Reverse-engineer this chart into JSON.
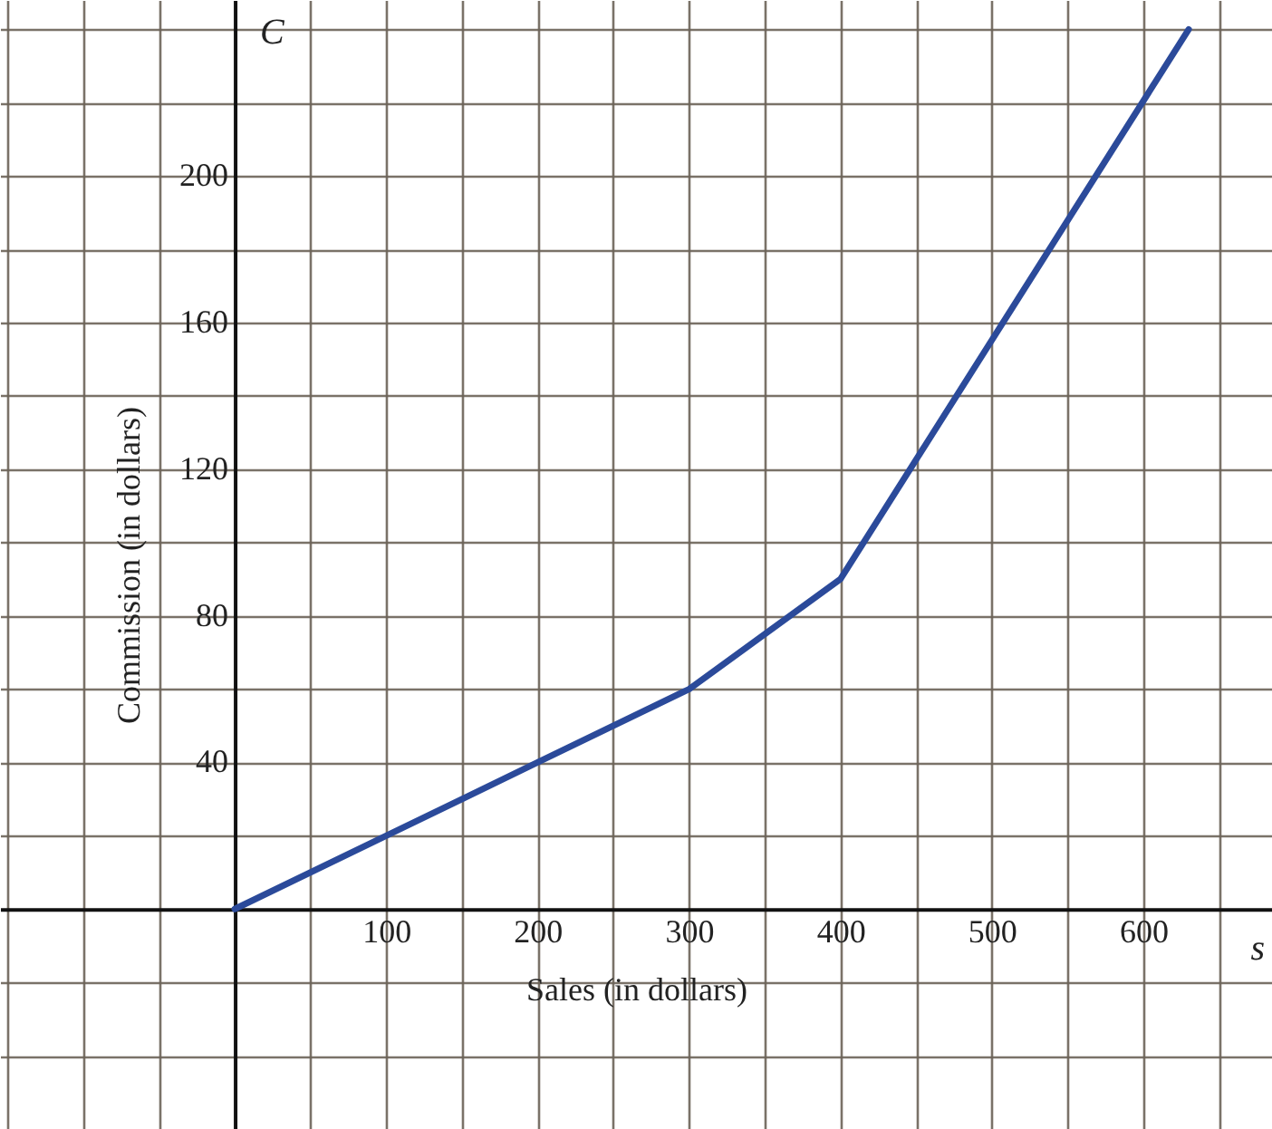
{
  "chart_data": {
    "type": "line",
    "xlabel": "Sales (in dollars)",
    "ylabel": "Commission (in dollars)",
    "annotations": [
      "C",
      "s"
    ],
    "x": [
      0,
      100,
      200,
      300,
      400,
      630
    ],
    "series": [
      {
        "color": "#2b4a9a",
        "values": [
          0,
          20,
          40,
          60,
          90,
          240
        ]
      }
    ],
    "xlim": [
      -155,
      685
    ],
    "ylim": [
      -60,
      248
    ],
    "xticks": [
      {
        "value": -150,
        "label": null
      },
      {
        "value": -100,
        "label": null
      },
      {
        "value": -50,
        "label": null
      },
      {
        "value": 50,
        "label": null
      },
      100,
      {
        "value": 150,
        "label": null
      },
      200,
      {
        "value": 250,
        "label": null
      },
      300,
      {
        "value": 350,
        "label": null
      },
      400,
      {
        "value": 450,
        "label": null
      },
      500,
      {
        "value": 550,
        "label": null
      },
      600,
      {
        "value": 650,
        "label": null
      }
    ],
    "yticks": [
      {
        "value": -40,
        "label": null
      },
      {
        "value": -20,
        "label": null
      },
      {
        "value": 20,
        "label": null
      },
      40,
      {
        "value": 60,
        "label": null
      },
      80,
      {
        "value": 100,
        "label": null
      },
      120,
      {
        "value": 140,
        "label": null
      },
      160,
      {
        "value": 180,
        "label": null
      },
      200,
      {
        "value": 220,
        "label": null
      },
      {
        "value": 240,
        "label": null
      }
    ],
    "grid": true,
    "marker": "none",
    "line_style": "solid"
  }
}
